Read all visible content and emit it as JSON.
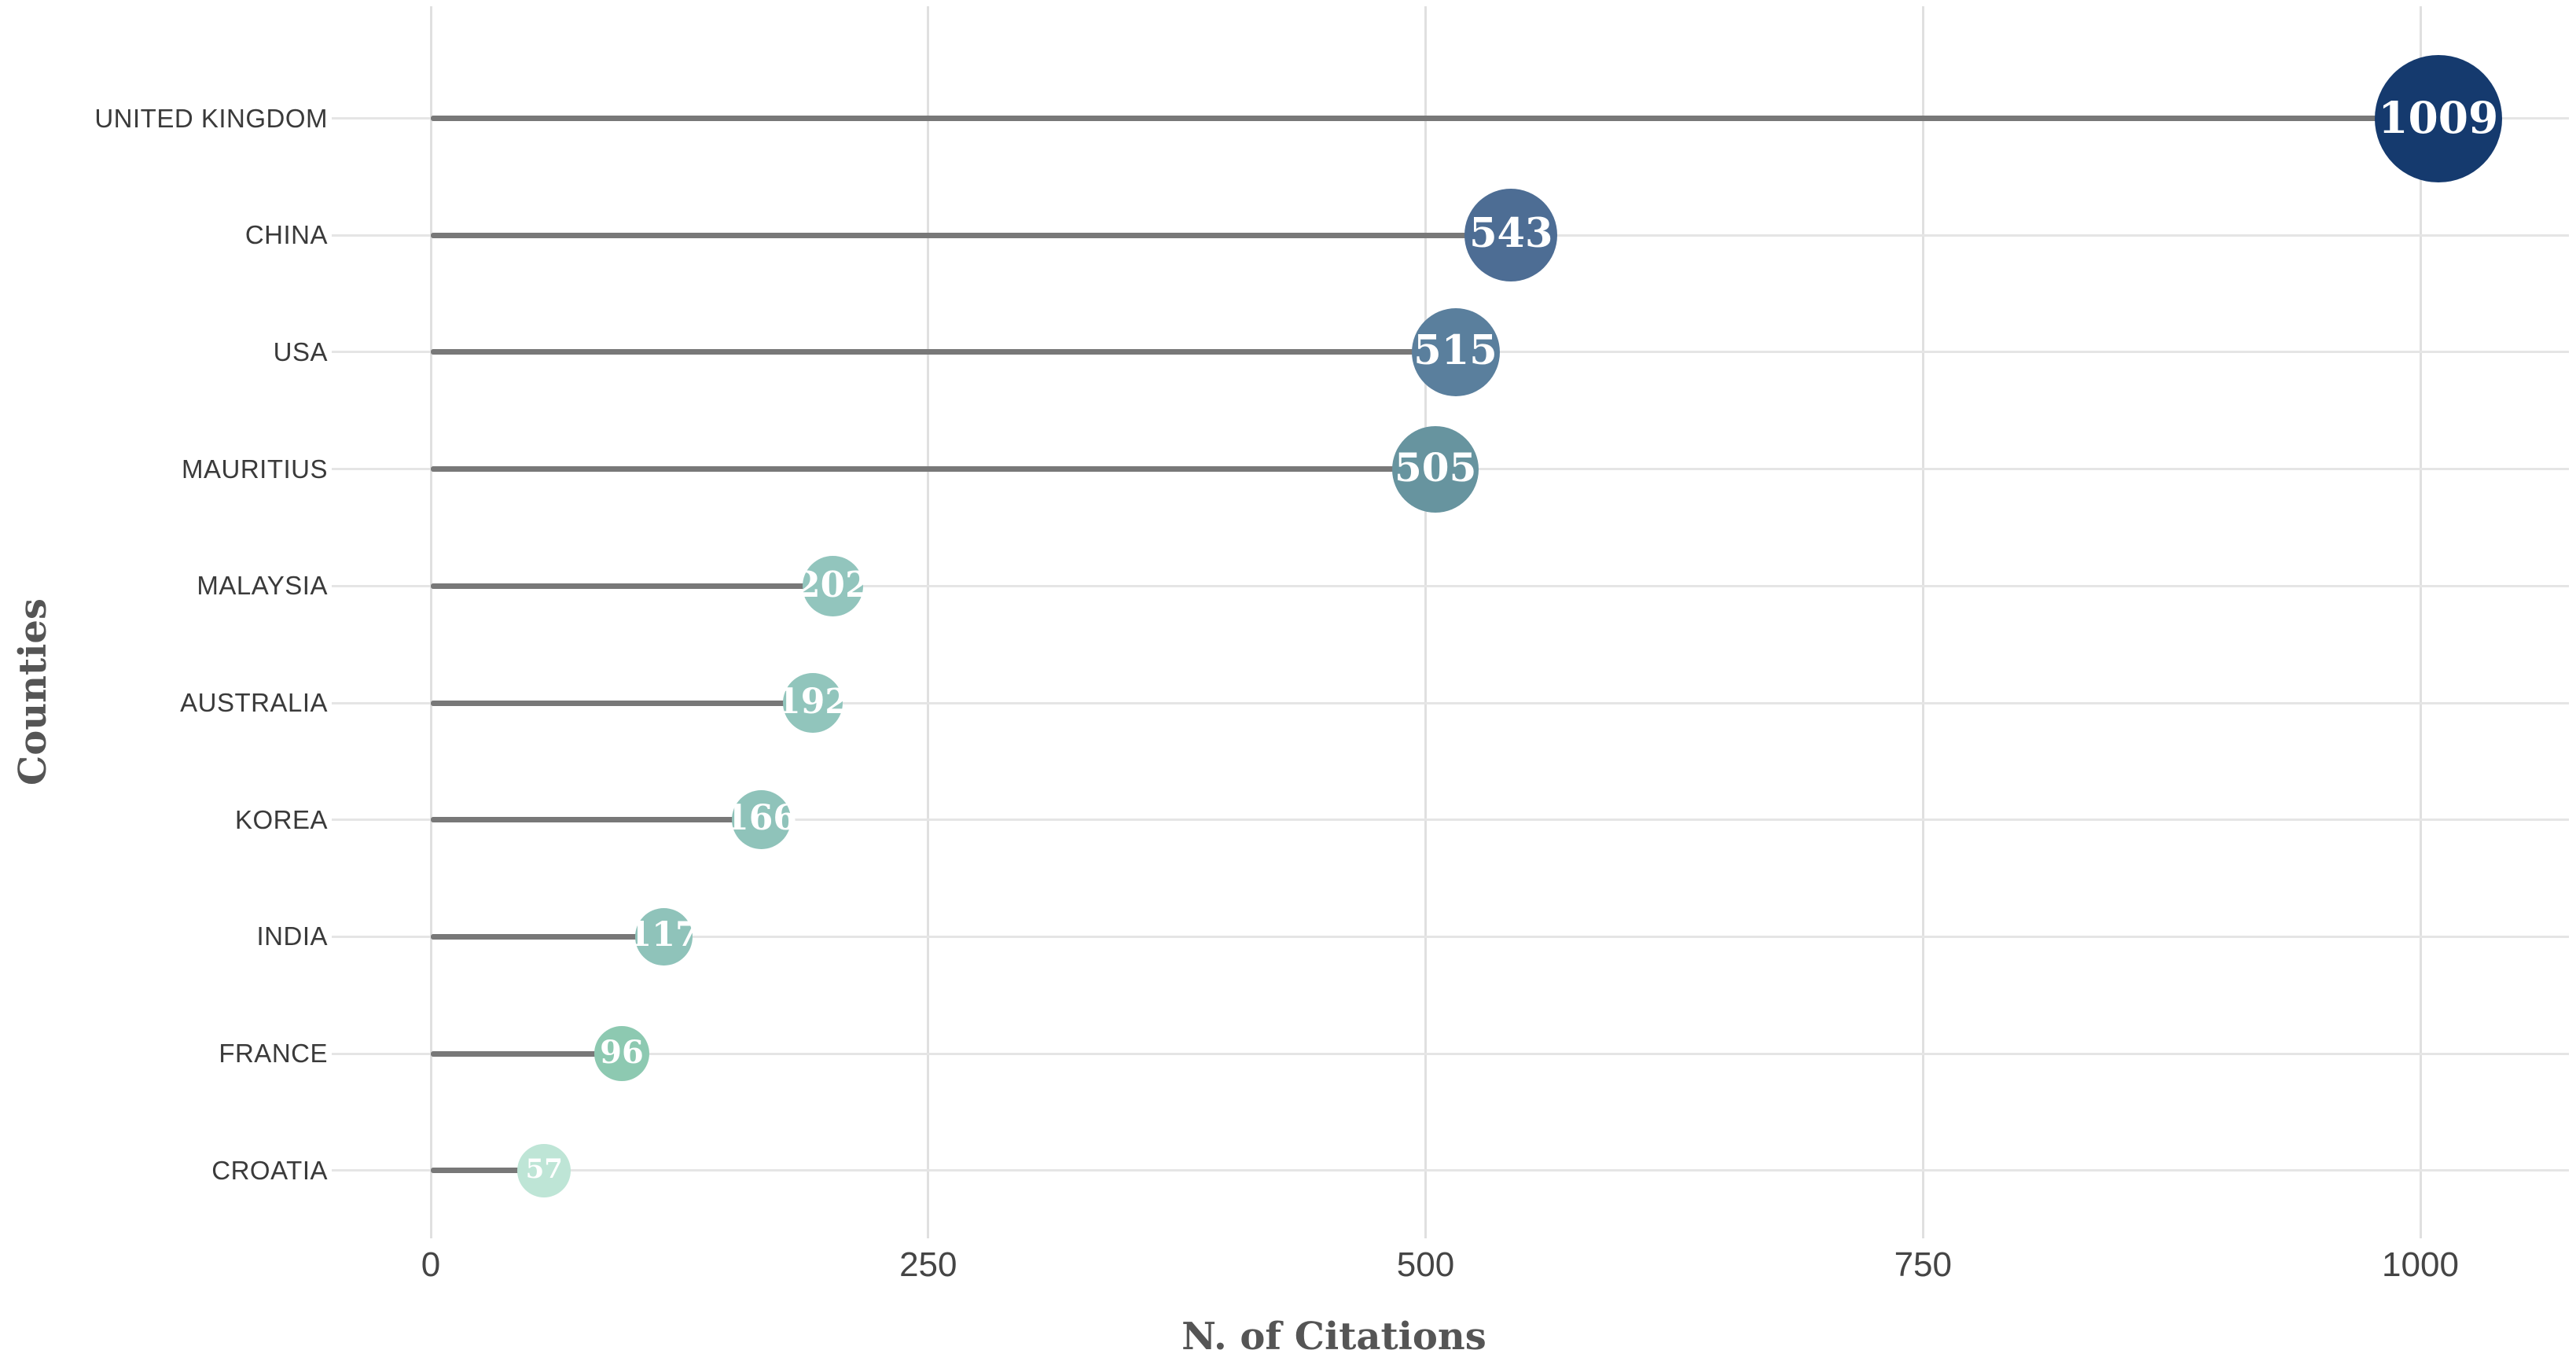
{
  "figure": {
    "background": "#ffffff"
  },
  "chart_data": {
    "type": "bar",
    "variant": "horizontal-lollipop",
    "title": "",
    "xlabel": "N. of Citations",
    "ylabel": "Counties",
    "categories": [
      "UNITED KINGDOM",
      "CHINA",
      "USA",
      "MAURITIUS",
      "MALAYSIA",
      "AUSTRALIA",
      "KOREA",
      "INDIA",
      "FRANCE",
      "CROATIA"
    ],
    "values": [
      1009,
      543,
      515,
      505,
      202,
      192,
      166,
      117,
      96,
      57
    ],
    "value_labels": [
      "1009",
      "543",
      "515",
      "505",
      "202",
      "192",
      "166",
      "117",
      "96",
      "57"
    ],
    "point_colors": [
      "#153a6e",
      "#4d6d94",
      "#5a7f9d",
      "#67949f",
      "#92c5bd",
      "#91c5bc",
      "#8fc3ba",
      "#8fc3ba",
      "#8dc9b1",
      "#bee5d6"
    ],
    "bubble_radius_px": [
      81,
      59,
      56,
      55,
      38.5,
      38,
      37.5,
      36.5,
      35,
      34
    ],
    "bubble_font_px": [
      55,
      51,
      51,
      50,
      45,
      44,
      44,
      43,
      40,
      34
    ],
    "x_ticks": [
      0,
      250,
      500,
      750,
      1000
    ],
    "x_tick_labels": [
      "0",
      "250",
      "500",
      "750",
      "1000"
    ],
    "xlim": [
      0,
      1000
    ],
    "grid": true,
    "legend": "none",
    "stem_color": "#787878",
    "value_text_color": "#ffffff"
  },
  "style": {
    "background": "#ffffff",
    "grid_vertical_color": "#e0e0e0",
    "grid_horizontal_color": "#e5e5e5",
    "stem_color": "#787878",
    "tick_label_color": "#454545",
    "category_label_color": "#3a3a3a",
    "axis_title_color": "#555555"
  }
}
